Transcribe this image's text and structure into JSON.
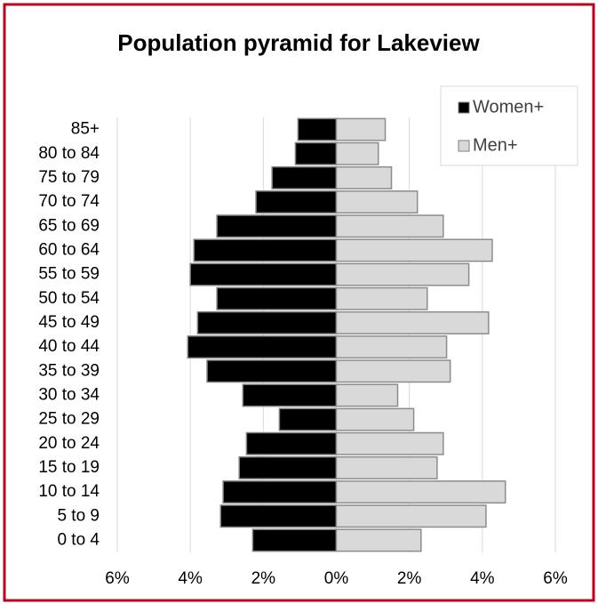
{
  "chart_data": {
    "type": "pyramid",
    "title": "Population pyramid for Lakeview",
    "categories": [
      "85+",
      "80 to 84",
      "75 to 79",
      "70 to 74",
      "65 to 69",
      "60 to 64",
      "55 to 59",
      "50 to 54",
      "45 to 49",
      "40 to 44",
      "35 to 39",
      "30 to 34",
      "25 to 29",
      "20 to 24",
      "15 to 19",
      "10 to 14",
      "5 to 9",
      "0 to 4"
    ],
    "series": [
      {
        "name": "Women+",
        "color": "#000000",
        "values": [
          -1.05,
          -1.12,
          -1.76,
          -2.2,
          -3.27,
          -3.9,
          -4.0,
          -3.27,
          -3.8,
          -4.07,
          -3.54,
          -2.56,
          -1.56,
          -2.46,
          -2.66,
          -3.1,
          -3.17,
          -2.29
        ]
      },
      {
        "name": "Men+",
        "color": "#d9d9d9",
        "values": [
          1.34,
          1.15,
          1.51,
          2.22,
          2.93,
          4.27,
          3.63,
          2.49,
          4.17,
          3.02,
          3.12,
          1.68,
          2.12,
          2.93,
          2.76,
          4.63,
          4.1,
          2.32
        ]
      }
    ],
    "xlim": [
      -6,
      6
    ],
    "xticks": [
      {
        "value": -6,
        "label": "6%"
      },
      {
        "value": -4,
        "label": "4%"
      },
      {
        "value": -2,
        "label": "2%"
      },
      {
        "value": 0,
        "label": "0%"
      },
      {
        "value": 2,
        "label": "2%"
      },
      {
        "value": 4,
        "label": "4%"
      },
      {
        "value": 6,
        "label": "6%"
      }
    ],
    "grid": true,
    "legend": "top right"
  }
}
